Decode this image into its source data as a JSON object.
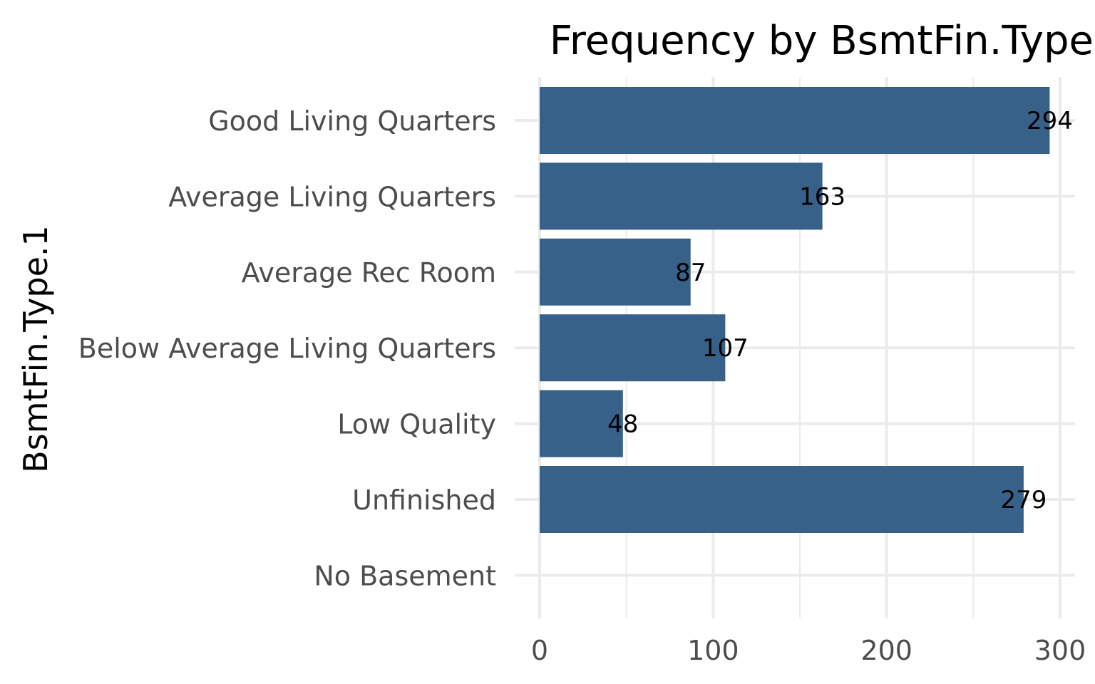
{
  "chart_data": {
    "type": "bar",
    "orientation": "horizontal",
    "title": "Frequency by BsmtFin.Type",
    "xlabel": "",
    "ylabel": "BsmtFin.Type.1",
    "categories": [
      "Good Living Quarters",
      "Average Living Quarters",
      "Average Rec Room",
      "Below Average Living Quarters",
      "Low Quality",
      "Unfinished",
      "No Basement"
    ],
    "values": [
      294,
      163,
      87,
      107,
      48,
      279,
      0
    ],
    "data_labels": [
      "294",
      "163",
      "87",
      "107",
      "48",
      "279",
      ""
    ],
    "xlim": [
      0,
      300
    ],
    "x_ticks": [
      0,
      100,
      200,
      300
    ],
    "x_minor_ticks": [
      50,
      150,
      250
    ],
    "grid": true,
    "legend": "none",
    "bar_color": "#376188"
  }
}
